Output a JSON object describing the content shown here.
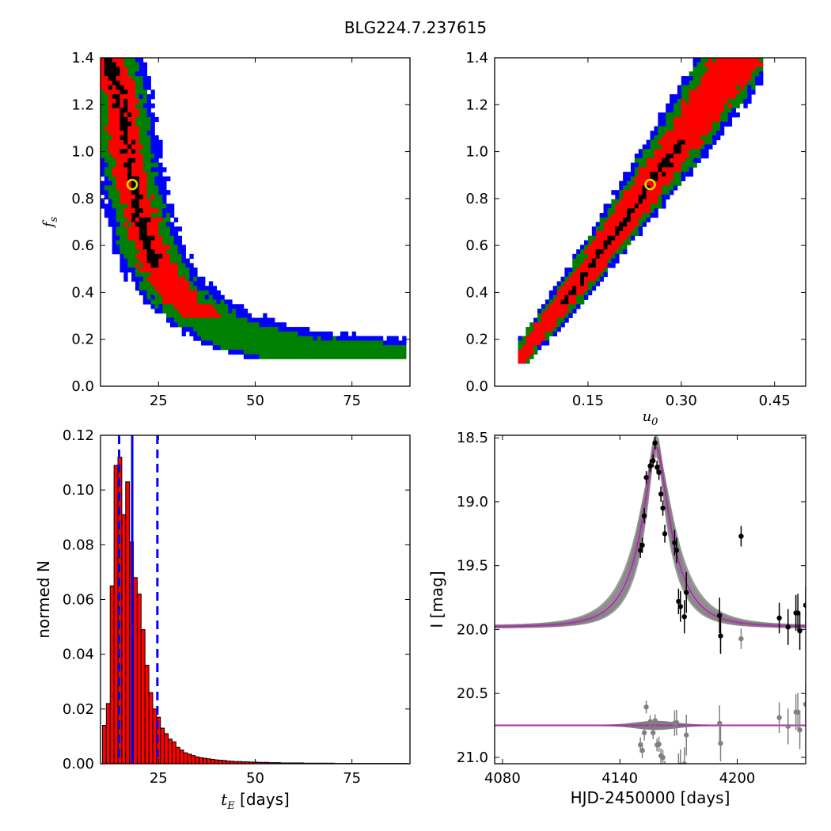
{
  "figure": {
    "title": "BLG224.7.237615"
  },
  "chart_data": [
    {
      "id": "fs_vs_tE",
      "type": "heatmap",
      "xlabel": "",
      "ylabel": "f_s",
      "xlim": [
        10,
        90
      ],
      "ylim": [
        0.0,
        1.4
      ],
      "xticks": [
        25,
        50,
        75
      ],
      "yticks": [
        0.0,
        0.2,
        0.4,
        0.6,
        0.8,
        1.0,
        1.2,
        1.4
      ],
      "confidence_colors": [
        "#000000",
        "#ff0000",
        "#008000",
        "#0000ff"
      ],
      "best_fit": {
        "x": 18.2,
        "y": 0.86
      },
      "ridge": {
        "x": [
          12,
          14,
          16,
          17,
          18,
          19,
          20,
          22,
          24,
          27,
          30,
          34,
          38,
          42,
          47,
          52,
          58,
          64,
          70,
          76,
          82,
          88
        ],
        "y": [
          1.4,
          1.3,
          1.12,
          1.0,
          0.9,
          0.82,
          0.74,
          0.62,
          0.53,
          0.45,
          0.38,
          0.32,
          0.28,
          0.24,
          0.21,
          0.18,
          0.16,
          0.14,
          0.13,
          0.12,
          0.115,
          0.11
        ]
      }
    },
    {
      "id": "fs_vs_u0",
      "type": "heatmap",
      "xlabel": "u_0",
      "ylabel": "",
      "xlim": [
        0.0,
        0.5
      ],
      "ylim": [
        0.0,
        1.4
      ],
      "xticks": [
        0.15,
        0.3,
        0.45
      ],
      "xtick_labels": [
        "0.15",
        "0.30",
        "0.45"
      ],
      "yticks": [
        0.0,
        0.2,
        0.4,
        0.6,
        0.8,
        1.0,
        1.2,
        1.4
      ],
      "best_fit": {
        "x": 0.25,
        "y": 0.86
      },
      "ridge": {
        "x": [
          0.04,
          0.07,
          0.1,
          0.13,
          0.16,
          0.19,
          0.22,
          0.25,
          0.28,
          0.31,
          0.34,
          0.37,
          0.4
        ],
        "y": [
          0.12,
          0.22,
          0.32,
          0.42,
          0.53,
          0.64,
          0.75,
          0.86,
          0.97,
          1.08,
          1.2,
          1.32,
          1.44
        ]
      }
    },
    {
      "id": "tE_histogram",
      "type": "bar",
      "xlabel": "t_E [days]",
      "ylabel": "normed N",
      "xlim": [
        10,
        90
      ],
      "ylim": [
        0.0,
        0.12
      ],
      "xticks": [
        25,
        50,
        75
      ],
      "yticks": [
        0.0,
        0.02,
        0.04,
        0.06,
        0.08,
        0.1,
        0.12
      ],
      "ytick_labels": [
        "0.00",
        "0.02",
        "0.04",
        "0.06",
        "0.08",
        "0.10",
        "0.12"
      ],
      "bin_start": 10.5,
      "bin_width": 1.0,
      "values": [
        0.014,
        0.022,
        0.065,
        0.109,
        0.112,
        0.091,
        0.103,
        0.081,
        0.068,
        0.062,
        0.049,
        0.036,
        0.026,
        0.02,
        0.017,
        0.013,
        0.011,
        0.009,
        0.008,
        0.006,
        0.005,
        0.004,
        0.0035,
        0.003,
        0.0025,
        0.0022,
        0.002,
        0.0018,
        0.0016,
        0.0014,
        0.0013,
        0.0012,
        0.001,
        0.0009,
        0.0008,
        0.0008,
        0.0007,
        0.0007,
        0.0006,
        0.0006,
        0.0005,
        0.0005,
        0.0005,
        0.0004,
        0.0004,
        0.0004,
        0.0003,
        0.0003,
        0.0003,
        0.0003,
        0.0003,
        0.0003,
        0.0002,
        0.0002,
        0.0002,
        0.0002,
        0.0002,
        0.0002,
        0.0002,
        0.0002,
        0.0001,
        0.0001,
        0.0001,
        0.0001,
        0.0001,
        0.0001,
        0.0001,
        0.0001,
        0.0001,
        0.0001,
        0.0001,
        0.0001,
        0.0001,
        0.0001,
        0.0001,
        0.0001,
        0.0001,
        0.0001,
        0.0001
      ],
      "vlines": [
        {
          "x": 18.2,
          "style": "solid"
        },
        {
          "x": 14.8,
          "style": "dashed"
        },
        {
          "x": 24.7,
          "style": "dashed"
        }
      ]
    },
    {
      "id": "light_curve",
      "type": "scatter",
      "xlabel": "HJD-2450000 [days]",
      "ylabel": "I [mag]",
      "xlim": [
        4076,
        4235
      ],
      "ylim": [
        21.05,
        18.48
      ],
      "xticks": [
        4080,
        4140,
        4200
      ],
      "yticks": [
        18.5,
        19.0,
        19.5,
        20.0,
        20.5,
        21.0
      ],
      "ytick_labels": [
        "18.5",
        "19.0",
        "19.5",
        "20.0",
        "20.5",
        "21.0"
      ],
      "model": {
        "t0": 4158.5,
        "tE": 18.2,
        "u0": 0.25,
        "fs": 0.86,
        "baseline": 19.98,
        "residual_offset": 20.75
      },
      "points": [
        {
          "x": 4150.5,
          "y": 19.38,
          "err": 0.06
        },
        {
          "x": 4151.5,
          "y": 19.34,
          "err": 0.06
        },
        {
          "x": 4152.5,
          "y": 19.11,
          "err": 0.06
        },
        {
          "x": 4153.5,
          "y": 18.81,
          "err": 0.05
        },
        {
          "x": 4155.5,
          "y": 18.72,
          "err": 0.05
        },
        {
          "x": 4157.0,
          "y": 18.68,
          "err": 0.05
        },
        {
          "x": 4158.0,
          "y": 18.54,
          "err": 0.05
        },
        {
          "x": 4159.0,
          "y": 18.73,
          "err": 0.05
        },
        {
          "x": 4160.0,
          "y": 18.77,
          "err": 0.06
        },
        {
          "x": 4161.0,
          "y": 18.94,
          "err": 0.06
        },
        {
          "x": 4162.0,
          "y": 19.05,
          "err": 0.06
        },
        {
          "x": 4163.0,
          "y": 19.25,
          "err": 0.07
        },
        {
          "x": 4168.0,
          "y": 19.32,
          "err": 0.1
        },
        {
          "x": 4169.0,
          "y": 19.38,
          "err": 0.1
        },
        {
          "x": 4170.0,
          "y": 19.78,
          "err": 0.1
        },
        {
          "x": 4171.0,
          "y": 19.82,
          "err": 0.12
        },
        {
          "x": 4173.0,
          "y": 19.9,
          "err": 0.13
        },
        {
          "x": 4174.0,
          "y": 19.71,
          "err": 0.16
        },
        {
          "x": 4191.0,
          "y": 19.89,
          "err": 0.14
        },
        {
          "x": 4191.5,
          "y": 20.05,
          "err": 0.14
        },
        {
          "x": 4202.0,
          "y": 19.27,
          "err": 0.08
        },
        {
          "x": 4221.5,
          "y": 19.91,
          "err": 0.12
        },
        {
          "x": 4226.0,
          "y": 19.98,
          "err": 0.14
        },
        {
          "x": 4230.0,
          "y": 19.87,
          "err": 0.14
        },
        {
          "x": 4231.0,
          "y": 19.87,
          "err": 0.15
        },
        {
          "x": 4232.0,
          "y": 20.01,
          "err": 0.15
        },
        {
          "x": 4235.0,
          "y": 19.81,
          "err": 0.15
        }
      ]
    }
  ]
}
